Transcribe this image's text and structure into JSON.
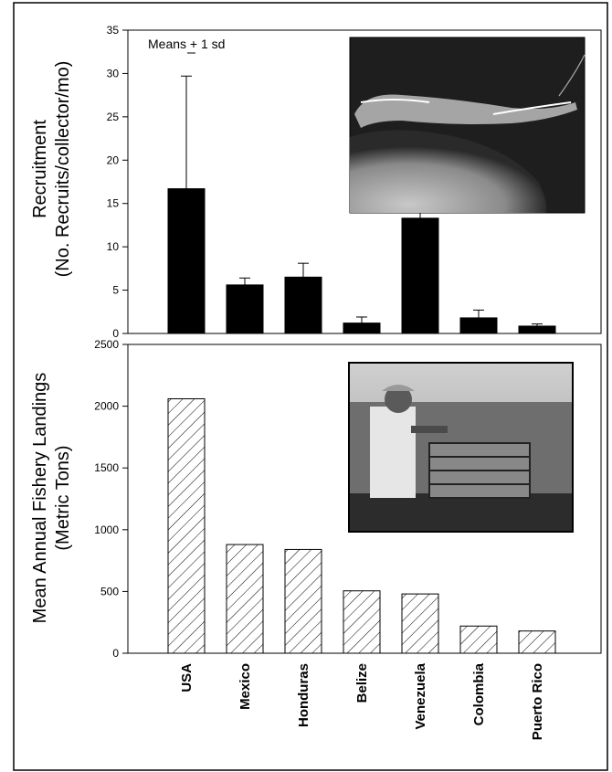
{
  "chart_data": [
    {
      "type": "bar",
      "categories": [
        "USA",
        "Mexico",
        "Honduras",
        "Belize",
        "Venezuela",
        "Colombia",
        "Puerto Rico"
      ],
      "values": [
        16.7,
        5.6,
        6.5,
        1.2,
        13.3,
        1.8,
        0.85
      ],
      "error_sd": [
        13.0,
        0.8,
        1.6,
        0.7,
        0.7,
        0.9,
        0.25
      ],
      "ylabel_line1": "Recruitment",
      "ylabel_line2": "(No. Recruits/collector/mo)",
      "ylim": [
        0,
        35
      ],
      "yticks": [
        "0",
        "5",
        "10",
        "15",
        "20",
        "25",
        "30",
        "35"
      ],
      "annotation": "Means + 1 sd",
      "bar_fill": "#000000",
      "grid": false
    },
    {
      "type": "bar",
      "categories": [
        "USA",
        "Mexico",
        "Honduras",
        "Belize",
        "Venezuela",
        "Colombia",
        "Puerto Rico"
      ],
      "values": [
        2060,
        880,
        840,
        505,
        480,
        220,
        180
      ],
      "ylabel_line1": "Mean Annual Fishery Landings",
      "ylabel_line2": "(Metric Tons)",
      "ylim": [
        0,
        2500
      ],
      "yticks": [
        "0",
        "500",
        "1000",
        "1500",
        "2000",
        "2500"
      ],
      "bar_fill": "hatched",
      "grid": false
    }
  ],
  "category_labels": [
    "USA",
    "Mexico",
    "Honduras",
    "Belize",
    "Venezuela",
    "Colombia",
    "Puerto Rico"
  ],
  "photos": [
    "lobster-postlarva-photo",
    "fisherman-with-trap-photo"
  ]
}
